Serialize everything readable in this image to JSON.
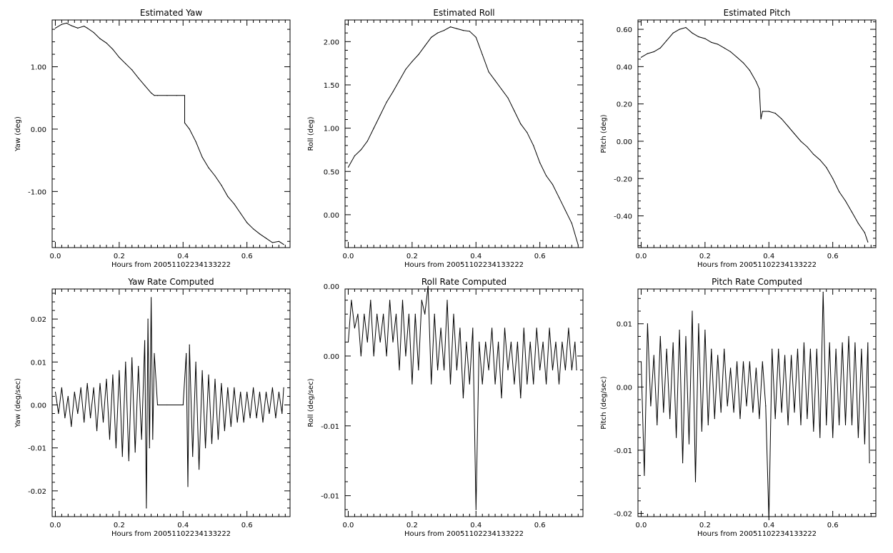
{
  "figure": {
    "background": "#ffffff",
    "line_color": "#000000"
  },
  "chart_data": [
    {
      "type": "line",
      "title": "Estimated Yaw",
      "xlabel": "Hours from 20051102234133222",
      "ylabel": "Yaw (deg)",
      "xlim": [
        -0.01,
        0.735
      ],
      "ylim": [
        -1.9,
        1.75
      ],
      "xticks": [
        0.0,
        0.2,
        0.4,
        0.6
      ],
      "xtick_labels": [
        "0.0",
        "0.2",
        "0.4",
        "0.6"
      ],
      "yticks": [
        -1.0,
        0.0,
        1.0
      ],
      "ytick_labels": [
        "-1.00",
        "0.00",
        "1.00"
      ],
      "series": [
        {
          "x": [
            0.0,
            0.02,
            0.035,
            0.05,
            0.07,
            0.09,
            0.1,
            0.12,
            0.14,
            0.16,
            0.18,
            0.2,
            0.22,
            0.24,
            0.26,
            0.28,
            0.3,
            0.31,
            0.32,
            0.35,
            0.38,
            0.405,
            0.405,
            0.42,
            0.44,
            0.46,
            0.48,
            0.5,
            0.52,
            0.54,
            0.56,
            0.58,
            0.6,
            0.62,
            0.64,
            0.66,
            0.68,
            0.7,
            0.715
          ],
          "y": [
            1.62,
            1.68,
            1.7,
            1.66,
            1.62,
            1.65,
            1.62,
            1.55,
            1.45,
            1.38,
            1.28,
            1.15,
            1.05,
            0.95,
            0.82,
            0.7,
            0.58,
            0.54,
            0.54,
            0.54,
            0.54,
            0.54,
            0.1,
            0.0,
            -0.2,
            -0.45,
            -0.62,
            -0.75,
            -0.9,
            -1.08,
            -1.2,
            -1.35,
            -1.5,
            -1.6,
            -1.68,
            -1.75,
            -1.82,
            -1.8,
            -1.85
          ]
        }
      ]
    },
    {
      "type": "line",
      "title": "Estimated Roll",
      "xlabel": "Hours from 20051102234133222",
      "ylabel": "Roll (deg)",
      "xlim": [
        -0.01,
        0.735
      ],
      "ylim": [
        -0.38,
        2.25
      ],
      "xticks": [
        0.0,
        0.2,
        0.4,
        0.6
      ],
      "xtick_labels": [
        "0.0",
        "0.2",
        "0.4",
        "0.6"
      ],
      "yticks": [
        0.0,
        0.5,
        1.0,
        1.5,
        2.0
      ],
      "ytick_labels": [
        "0.00",
        "0.50",
        "1.00",
        "1.50",
        "2.00"
      ],
      "series": [
        {
          "x": [
            0.0,
            0.02,
            0.04,
            0.06,
            0.08,
            0.1,
            0.12,
            0.14,
            0.16,
            0.18,
            0.2,
            0.22,
            0.24,
            0.26,
            0.28,
            0.3,
            0.32,
            0.34,
            0.36,
            0.38,
            0.4,
            0.42,
            0.44,
            0.46,
            0.48,
            0.5,
            0.52,
            0.54,
            0.56,
            0.58,
            0.6,
            0.62,
            0.64,
            0.66,
            0.68,
            0.7,
            0.72
          ],
          "y": [
            0.55,
            0.68,
            0.75,
            0.85,
            1.0,
            1.15,
            1.3,
            1.42,
            1.55,
            1.68,
            1.77,
            1.85,
            1.95,
            2.05,
            2.1,
            2.13,
            2.17,
            2.15,
            2.13,
            2.12,
            2.05,
            1.85,
            1.65,
            1.55,
            1.45,
            1.35,
            1.2,
            1.05,
            0.95,
            0.8,
            0.6,
            0.45,
            0.35,
            0.2,
            0.05,
            -0.1,
            -0.35
          ]
        }
      ]
    },
    {
      "type": "line",
      "title": "Estimated Pitch",
      "xlabel": "Hours from 20051102234133222",
      "ylabel": "Pitch (deg)",
      "xlim": [
        -0.01,
        0.735
      ],
      "ylim": [
        -0.57,
        0.65
      ],
      "xticks": [
        0.0,
        0.2,
        0.4,
        0.6
      ],
      "xtick_labels": [
        "0.0",
        "0.2",
        "0.4",
        "0.6"
      ],
      "yticks": [
        -0.4,
        -0.2,
        0.0,
        0.2,
        0.4,
        0.6
      ],
      "ytick_labels": [
        "-0.40",
        "-0.20",
        "0.00",
        "0.20",
        "0.40",
        "0.60"
      ],
      "series": [
        {
          "x": [
            0.0,
            0.02,
            0.04,
            0.06,
            0.08,
            0.1,
            0.12,
            0.14,
            0.16,
            0.18,
            0.2,
            0.22,
            0.24,
            0.26,
            0.28,
            0.3,
            0.32,
            0.34,
            0.36,
            0.37,
            0.375,
            0.38,
            0.4,
            0.42,
            0.44,
            0.46,
            0.48,
            0.5,
            0.52,
            0.54,
            0.56,
            0.58,
            0.6,
            0.62,
            0.64,
            0.66,
            0.68,
            0.7,
            0.71
          ],
          "y": [
            0.45,
            0.47,
            0.48,
            0.5,
            0.54,
            0.58,
            0.6,
            0.61,
            0.58,
            0.56,
            0.55,
            0.53,
            0.52,
            0.5,
            0.48,
            0.45,
            0.42,
            0.38,
            0.32,
            0.28,
            0.12,
            0.16,
            0.16,
            0.15,
            0.12,
            0.08,
            0.04,
            0.0,
            -0.03,
            -0.07,
            -0.1,
            -0.14,
            -0.2,
            -0.27,
            -0.32,
            -0.38,
            -0.44,
            -0.49,
            -0.54
          ]
        }
      ]
    },
    {
      "type": "line",
      "title": "Yaw Rate Computed",
      "xlabel": "Hours from 20051102234133222",
      "ylabel": "Yaw (deg/sec)",
      "xlim": [
        -0.01,
        0.735
      ],
      "ylim": [
        -0.026,
        0.027
      ],
      "xticks": [
        0.0,
        0.2,
        0.4,
        0.6
      ],
      "xtick_labels": [
        "0.0",
        "0.2",
        "0.4",
        "0.6"
      ],
      "yticks": [
        -0.02,
        -0.01,
        0.0,
        0.01,
        0.02
      ],
      "ytick_labels": [
        "-0.02",
        "-0.01",
        "0.00",
        "0.01",
        "0.02"
      ],
      "series": [
        {
          "x": [
            0.0,
            0.01,
            0.02,
            0.03,
            0.04,
            0.05,
            0.06,
            0.07,
            0.08,
            0.09,
            0.1,
            0.11,
            0.12,
            0.13,
            0.14,
            0.15,
            0.16,
            0.17,
            0.18,
            0.19,
            0.2,
            0.21,
            0.22,
            0.23,
            0.24,
            0.25,
            0.26,
            0.27,
            0.28,
            0.285,
            0.29,
            0.295,
            0.3,
            0.305,
            0.31,
            0.32,
            0.35,
            0.4,
            0.41,
            0.415,
            0.42,
            0.43,
            0.44,
            0.45,
            0.46,
            0.47,
            0.48,
            0.49,
            0.5,
            0.51,
            0.52,
            0.53,
            0.54,
            0.55,
            0.56,
            0.57,
            0.58,
            0.59,
            0.6,
            0.61,
            0.62,
            0.63,
            0.64,
            0.65,
            0.66,
            0.67,
            0.68,
            0.69,
            0.7,
            0.71,
            0.715
          ],
          "y": [
            0.003,
            -0.002,
            0.004,
            -0.003,
            0.002,
            -0.005,
            0.003,
            -0.002,
            0.004,
            -0.004,
            0.005,
            -0.003,
            0.004,
            -0.006,
            0.005,
            -0.004,
            0.006,
            -0.008,
            0.007,
            -0.01,
            0.008,
            -0.012,
            0.01,
            -0.013,
            0.011,
            -0.011,
            0.009,
            -0.008,
            0.015,
            -0.024,
            0.02,
            -0.01,
            0.025,
            -0.008,
            0.012,
            0.0,
            0.0,
            0.0,
            0.012,
            -0.019,
            0.014,
            -0.012,
            0.01,
            -0.015,
            0.008,
            -0.01,
            0.007,
            -0.009,
            0.006,
            -0.008,
            0.005,
            -0.006,
            0.004,
            -0.005,
            0.004,
            -0.004,
            0.003,
            -0.004,
            0.003,
            -0.003,
            0.004,
            -0.003,
            0.003,
            -0.004,
            0.003,
            -0.002,
            0.004,
            -0.003,
            0.003,
            -0.002,
            0.004
          ]
        }
      ]
    },
    {
      "type": "line",
      "title": "Roll Rate Computed",
      "xlabel": "Hours from 20051102234133222",
      "ylabel": "Roll (deg/sec)",
      "xlim": [
        -0.01,
        0.735
      ],
      "ylim": [
        -0.0115,
        0.0048
      ],
      "xticks": [
        0.0,
        0.2,
        0.4,
        0.6
      ],
      "xtick_labels": [
        "0.0",
        "0.2",
        "0.4",
        "0.6"
      ],
      "yticks": [
        -0.01,
        -0.005,
        0.0,
        0.005
      ],
      "ytick_labels": [
        "-0.01",
        "-0.01",
        "0.00",
        "0.00"
      ],
      "series": [
        {
          "x": [
            0.0,
            0.01,
            0.02,
            0.03,
            0.04,
            0.05,
            0.06,
            0.07,
            0.08,
            0.09,
            0.1,
            0.11,
            0.12,
            0.13,
            0.14,
            0.15,
            0.16,
            0.17,
            0.18,
            0.19,
            0.2,
            0.21,
            0.22,
            0.23,
            0.24,
            0.25,
            0.26,
            0.27,
            0.28,
            0.29,
            0.3,
            0.31,
            0.32,
            0.33,
            0.34,
            0.35,
            0.36,
            0.37,
            0.38,
            0.39,
            0.4,
            0.41,
            0.42,
            0.43,
            0.44,
            0.45,
            0.46,
            0.47,
            0.48,
            0.49,
            0.5,
            0.51,
            0.52,
            0.53,
            0.54,
            0.55,
            0.56,
            0.57,
            0.58,
            0.59,
            0.6,
            0.61,
            0.62,
            0.63,
            0.64,
            0.65,
            0.66,
            0.67,
            0.68,
            0.69,
            0.7,
            0.71,
            0.715
          ],
          "y": [
            0.001,
            0.004,
            0.002,
            0.003,
            0.0,
            0.003,
            0.001,
            0.004,
            0.0,
            0.003,
            0.001,
            0.003,
            0.0,
            0.004,
            0.001,
            0.003,
            -0.001,
            0.004,
            0.0,
            0.003,
            -0.002,
            0.003,
            -0.001,
            0.004,
            0.003,
            0.005,
            -0.002,
            0.003,
            -0.001,
            0.002,
            -0.001,
            0.004,
            -0.002,
            0.003,
            -0.001,
            0.002,
            -0.003,
            0.001,
            -0.002,
            0.002,
            -0.011,
            0.001,
            -0.002,
            0.001,
            -0.001,
            0.002,
            -0.002,
            0.001,
            -0.003,
            0.002,
            -0.001,
            0.001,
            -0.002,
            0.001,
            -0.003,
            0.002,
            -0.002,
            0.001,
            -0.002,
            0.002,
            -0.001,
            0.001,
            -0.002,
            0.002,
            -0.001,
            0.001,
            -0.002,
            0.001,
            -0.001,
            0.002,
            -0.001,
            0.001,
            -0.001
          ]
        }
      ]
    },
    {
      "type": "line",
      "title": "Pitch Rate Computed",
      "xlabel": "Hours from 20051102234133222",
      "ylabel": "Pitch (deg/sec)",
      "xlim": [
        -0.01,
        0.735
      ],
      "ylim": [
        -0.0205,
        0.0155
      ],
      "xticks": [
        0.0,
        0.2,
        0.4,
        0.6
      ],
      "xtick_labels": [
        "0.0",
        "0.2",
        "0.4",
        "0.6"
      ],
      "yticks": [
        -0.02,
        -0.01,
        0.0,
        0.01
      ],
      "ytick_labels": [
        "-0.02",
        "-0.01",
        "0.00",
        "0.01"
      ],
      "series": [
        {
          "x": [
            0.0,
            0.01,
            0.02,
            0.03,
            0.04,
            0.05,
            0.06,
            0.07,
            0.08,
            0.09,
            0.1,
            0.11,
            0.12,
            0.13,
            0.14,
            0.15,
            0.16,
            0.17,
            0.18,
            0.19,
            0.2,
            0.21,
            0.22,
            0.23,
            0.24,
            0.25,
            0.26,
            0.27,
            0.28,
            0.29,
            0.3,
            0.31,
            0.32,
            0.33,
            0.34,
            0.35,
            0.36,
            0.37,
            0.38,
            0.39,
            0.4,
            0.41,
            0.42,
            0.43,
            0.44,
            0.45,
            0.46,
            0.47,
            0.48,
            0.49,
            0.5,
            0.51,
            0.52,
            0.53,
            0.54,
            0.55,
            0.56,
            0.57,
            0.58,
            0.59,
            0.6,
            0.61,
            0.62,
            0.63,
            0.64,
            0.65,
            0.66,
            0.67,
            0.68,
            0.69,
            0.7,
            0.71,
            0.715
          ],
          "y": [
            0.004,
            -0.014,
            0.01,
            -0.003,
            0.005,
            -0.006,
            0.008,
            -0.004,
            0.006,
            -0.005,
            0.007,
            -0.008,
            0.009,
            -0.012,
            0.008,
            -0.009,
            0.012,
            -0.015,
            0.01,
            -0.007,
            0.009,
            -0.006,
            0.006,
            -0.005,
            0.005,
            -0.004,
            0.006,
            -0.003,
            0.003,
            -0.004,
            0.004,
            -0.005,
            0.004,
            -0.003,
            0.004,
            -0.004,
            0.003,
            -0.005,
            0.004,
            -0.003,
            -0.021,
            0.006,
            -0.005,
            0.006,
            -0.004,
            0.005,
            -0.006,
            0.005,
            -0.004,
            0.006,
            -0.006,
            0.007,
            -0.005,
            0.006,
            -0.007,
            0.006,
            -0.008,
            0.015,
            -0.006,
            0.007,
            -0.008,
            0.006,
            -0.006,
            0.007,
            -0.006,
            0.008,
            -0.006,
            0.007,
            -0.008,
            0.006,
            -0.009,
            0.007,
            -0.012
          ]
        }
      ]
    }
  ]
}
